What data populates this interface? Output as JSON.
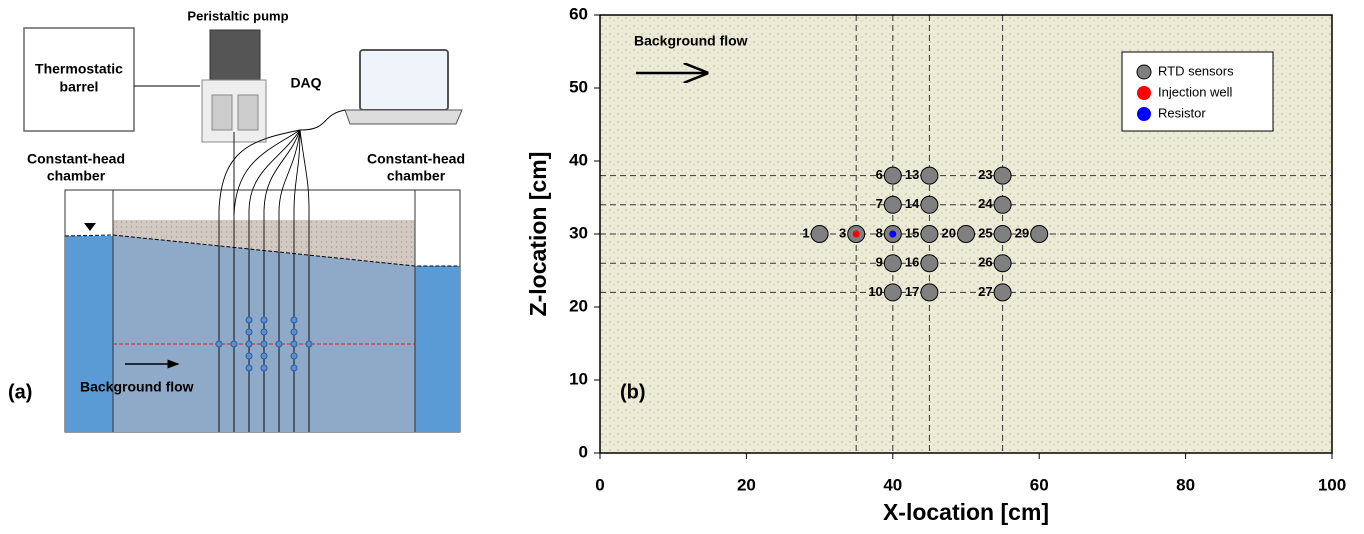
{
  "panel_a": {
    "label": "(a)",
    "pump": "Peristaltic pump",
    "barrel": [
      "Thermostatic",
      "barrel"
    ],
    "daq": "DAQ",
    "left_chamber": [
      "Constant-head",
      "chamber"
    ],
    "right_chamber": [
      "Constant-head",
      "chamber"
    ],
    "flow": "Background flow"
  },
  "chart_data": {
    "type": "scatter",
    "label": "(b)",
    "annotation": "Background flow",
    "xlabel": "X-location [cm]",
    "ylabel": "Z-location [cm]",
    "xlim": [
      0,
      100
    ],
    "ylim": [
      0,
      60
    ],
    "xticks": [
      0,
      20,
      40,
      60,
      80,
      100
    ],
    "yticks": [
      0,
      10,
      20,
      30,
      40,
      50,
      60
    ],
    "guide_x": [
      35,
      40,
      45,
      55
    ],
    "guide_z": [
      22,
      26,
      30,
      34,
      38
    ],
    "legend": "upper right",
    "series": [
      {
        "name": "RTD sensors",
        "color": "#808080",
        "x": [
          30,
          35,
          40,
          40,
          40,
          40,
          40,
          45,
          45,
          45,
          45,
          45,
          50,
          55,
          55,
          55,
          55,
          55,
          60
        ],
        "y": [
          30,
          30,
          38,
          34,
          30,
          26,
          22,
          38,
          34,
          30,
          26,
          22,
          30,
          38,
          34,
          30,
          26,
          22,
          30
        ],
        "point_labels": [
          "1",
          "3",
          "6",
          "7",
          "8",
          "9",
          "10",
          "13",
          "14",
          "15",
          "16",
          "17",
          "20",
          "23",
          "24",
          "25",
          "26",
          "27",
          "29"
        ]
      },
      {
        "name": "Injection well",
        "color": "#ff0000",
        "x": [
          35
        ],
        "y": [
          30
        ]
      },
      {
        "name": "Resistor",
        "color": "#0000ff",
        "x": [
          40
        ],
        "y": [
          30
        ]
      }
    ]
  }
}
